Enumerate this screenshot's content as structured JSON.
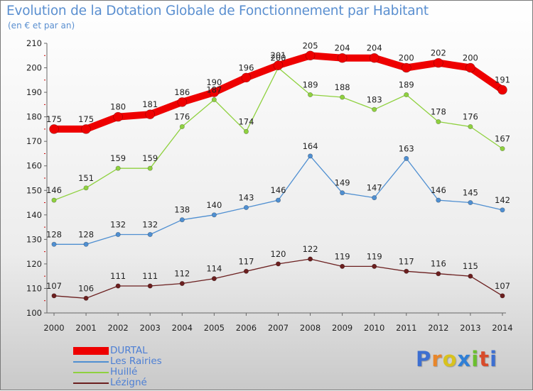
{
  "title": "Evolution de la Dotation Globale de Fonctionnement par Habitant",
  "subtitle": "(en € et par an)",
  "brand": {
    "text": "Proxiti",
    "letter_colors": [
      "#3d6fd1",
      "#e8862a",
      "#d8c21e",
      "#2f7fd6",
      "#6bbf2e",
      "#d84b2a",
      "#3d6fd1"
    ]
  },
  "chart_data": {
    "type": "line",
    "categories": [
      "2000",
      "2001",
      "2002",
      "2003",
      "2004",
      "2005",
      "2006",
      "2007",
      "2008",
      "2009",
      "2010",
      "2011",
      "2012",
      "2013",
      "2014"
    ],
    "ylim": [
      100,
      210
    ],
    "yticks": [
      "100",
      "110",
      "120",
      "130",
      "140",
      "150",
      "160",
      "170",
      "180",
      "190",
      "200",
      "210"
    ],
    "grid": false,
    "legend_position": "bottom-left",
    "series": [
      {
        "name": "Lézigné",
        "color": "#6b1f1f",
        "values": [
          107,
          106,
          111,
          111,
          112,
          114,
          117,
          120,
          122,
          119,
          119,
          117,
          116,
          115,
          107
        ]
      },
      {
        "name": "Les Rairies",
        "color": "#4f8fd1",
        "values": [
          128,
          128,
          132,
          132,
          138,
          140,
          143,
          146,
          164,
          149,
          147,
          163,
          146,
          145,
          142
        ]
      },
      {
        "name": "Huillé",
        "color": "#8fd13f",
        "values": [
          146,
          151,
          159,
          159,
          176,
          187,
          174,
          200,
          189,
          188,
          183,
          189,
          178,
          176,
          167
        ]
      },
      {
        "name": "DURTAL",
        "color": "#ee0000",
        "values": [
          175,
          175,
          180,
          181,
          186,
          190,
          196,
          201,
          205,
          204,
          204,
          200,
          202,
          200,
          191
        ]
      }
    ],
    "legend": [
      {
        "name": "DURTAL",
        "color": "#ee0000",
        "thickness": 11
      },
      {
        "name": "Les Rairies",
        "color": "#4f8fd1",
        "thickness": 2
      },
      {
        "name": "Huillé",
        "color": "#8fd13f",
        "thickness": 2
      },
      {
        "name": "Lézigné",
        "color": "#6b1f1f",
        "thickness": 2
      }
    ]
  }
}
